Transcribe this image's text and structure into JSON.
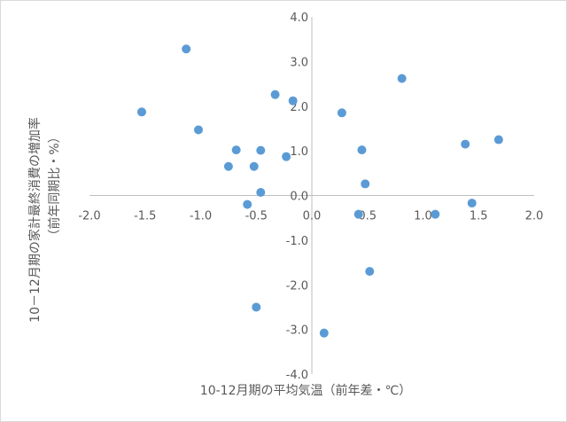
{
  "chart_data": {
    "type": "scatter",
    "title": "",
    "xlabel": "10-12月期の平均気温（前年差・℃）",
    "ylabel_line1": "10－12月期の家計最終消費の増加率",
    "ylabel_line2": "（前年同期比・%）",
    "xlim": [
      -2.0,
      2.0
    ],
    "ylim": [
      -4.0,
      4.0
    ],
    "x_ticks": [
      "-2.0",
      "-1.5",
      "-1.0",
      "-0.5",
      "0.0",
      "0.5",
      "1.0",
      "1.5",
      "2.0"
    ],
    "y_ticks": [
      "-4.0",
      "-3.0",
      "-2.0",
      "-1.0",
      "0.0",
      "1.0",
      "2.0",
      "3.0",
      "4.0"
    ],
    "grid": false,
    "legend": "none",
    "marker_color": "#5b9bd5",
    "points": [
      {
        "x": -1.13,
        "y": 3.28
      },
      {
        "x": -1.53,
        "y": 1.87
      },
      {
        "x": -1.02,
        "y": 1.47
      },
      {
        "x": -0.68,
        "y": 1.02
      },
      {
        "x": -0.75,
        "y": 0.65
      },
      {
        "x": -0.52,
        "y": 0.65
      },
      {
        "x": -0.46,
        "y": 1.01
      },
      {
        "x": -0.46,
        "y": 0.07
      },
      {
        "x": -0.58,
        "y": -0.2
      },
      {
        "x": -0.5,
        "y": -2.5
      },
      {
        "x": -0.33,
        "y": 2.26
      },
      {
        "x": -0.17,
        "y": 2.12
      },
      {
        "x": -0.23,
        "y": 0.87
      },
      {
        "x": 0.27,
        "y": 1.85
      },
      {
        "x": 0.45,
        "y": 1.02
      },
      {
        "x": 0.48,
        "y": 0.26
      },
      {
        "x": 0.42,
        "y": -0.42
      },
      {
        "x": 0.52,
        "y": -1.7
      },
      {
        "x": 0.11,
        "y": -3.08
      },
      {
        "x": 0.81,
        "y": 2.62
      },
      {
        "x": 1.11,
        "y": -0.42
      },
      {
        "x": 1.38,
        "y": 1.15
      },
      {
        "x": 1.44,
        "y": -0.17
      },
      {
        "x": 1.68,
        "y": 1.25
      }
    ]
  }
}
